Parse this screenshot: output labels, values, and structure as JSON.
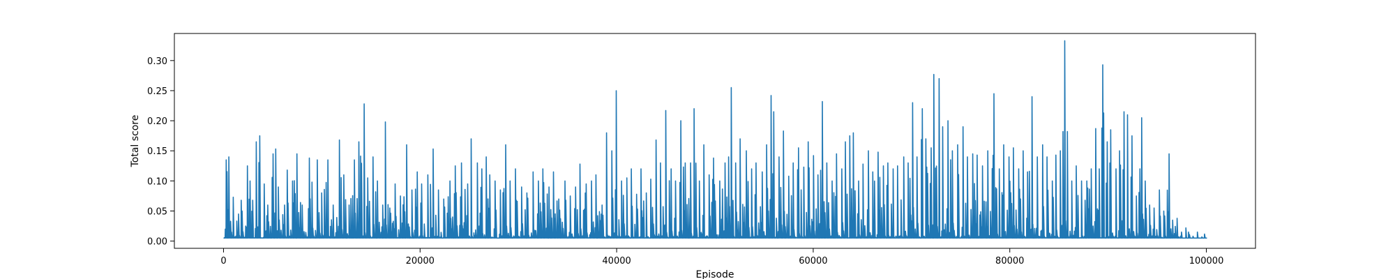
{
  "chart_data": {
    "type": "line",
    "title": "",
    "xlabel": "Episode",
    "ylabel": "Total score",
    "xlim": [
      -5000,
      105000
    ],
    "ylim": [
      -0.012,
      0.345
    ],
    "xticks": [
      0,
      20000,
      40000,
      60000,
      80000,
      100000
    ],
    "xtick_labels": [
      "0",
      "20000",
      "40000",
      "60000",
      "80000",
      "100000"
    ],
    "yticks": [
      0.0,
      0.05,
      0.1,
      0.15,
      0.2,
      0.25,
      0.3
    ],
    "ytick_labels": [
      "0.00",
      "0.05",
      "0.10",
      "0.15",
      "0.20",
      "0.25",
      "0.30"
    ],
    "grid": false,
    "color": "#1f77b4",
    "series": [
      {
        "baseline": 0.005,
        "x_range": [
          0,
          100000
        ],
        "peaks": [
          [
            0,
            0.005
          ],
          [
            150,
            0.02
          ],
          [
            300,
            0.135
          ],
          [
            550,
            0.14
          ],
          [
            800,
            0.015
          ],
          [
            1000,
            0.073
          ],
          [
            1500,
            0.045
          ],
          [
            1800,
            0.068
          ],
          [
            2400,
            0.125
          ],
          [
            2700,
            0.1
          ],
          [
            3000,
            0.068
          ],
          [
            3300,
            0.165
          ],
          [
            3700,
            0.175
          ],
          [
            4100,
            0.095
          ],
          [
            4500,
            0.06
          ],
          [
            5000,
            0.145
          ],
          [
            5300,
            0.153
          ],
          [
            5600,
            0.09
          ],
          [
            6200,
            0.06
          ],
          [
            6500,
            0.118
          ],
          [
            7000,
            0.1
          ],
          [
            7500,
            0.145
          ],
          [
            8000,
            0.06
          ],
          [
            8700,
            0.138
          ],
          [
            9000,
            0.098
          ],
          [
            9500,
            0.135
          ],
          [
            10000,
            0.08
          ],
          [
            10600,
            0.135
          ],
          [
            11200,
            0.06
          ],
          [
            11800,
            0.168
          ],
          [
            12200,
            0.11
          ],
          [
            12800,
            0.06
          ],
          [
            13300,
            0.135
          ],
          [
            13800,
            0.165
          ],
          [
            14300,
            0.228
          ],
          [
            14700,
            0.105
          ],
          [
            15200,
            0.14
          ],
          [
            15700,
            0.1
          ],
          [
            16200,
            0.06
          ],
          [
            16500,
            0.198
          ],
          [
            16900,
            0.055
          ],
          [
            17500,
            0.095
          ],
          [
            18000,
            0.075
          ],
          [
            18600,
            0.16
          ],
          [
            19200,
            0.085
          ],
          [
            19700,
            0.115
          ],
          [
            20200,
            0.095
          ],
          [
            20800,
            0.11
          ],
          [
            21300,
            0.153
          ],
          [
            21900,
            0.085
          ],
          [
            22400,
            0.07
          ],
          [
            23000,
            0.1
          ],
          [
            23600,
            0.125
          ],
          [
            24200,
            0.13
          ],
          [
            24800,
            0.095
          ],
          [
            25200,
            0.17
          ],
          [
            25800,
            0.13
          ],
          [
            26300,
            0.12
          ],
          [
            26700,
            0.14
          ],
          [
            27100,
            0.11
          ],
          [
            27600,
            0.1
          ],
          [
            28200,
            0.085
          ],
          [
            28700,
            0.16
          ],
          [
            29200,
            0.1
          ],
          [
            29700,
            0.12
          ],
          [
            30300,
            0.09
          ],
          [
            30900,
            0.08
          ],
          [
            31500,
            0.115
          ],
          [
            32000,
            0.1
          ],
          [
            32500,
            0.12
          ],
          [
            33100,
            0.09
          ],
          [
            33600,
            0.115
          ],
          [
            34100,
            0.07
          ],
          [
            34700,
            0.1
          ],
          [
            35300,
            0.075
          ],
          [
            35800,
            0.09
          ],
          [
            36300,
            0.128
          ],
          [
            36900,
            0.095
          ],
          [
            37400,
            0.1
          ],
          [
            37900,
            0.11
          ],
          [
            38500,
            0.06
          ],
          [
            39000,
            0.18
          ],
          [
            39500,
            0.15
          ],
          [
            40000,
            0.25
          ],
          [
            40500,
            0.1
          ],
          [
            41000,
            0.105
          ],
          [
            41500,
            0.12
          ],
          [
            42000,
            0.078
          ],
          [
            42500,
            0.12
          ],
          [
            43000,
            0.08
          ],
          [
            43500,
            0.103
          ],
          [
            44000,
            0.168
          ],
          [
            44500,
            0.13
          ],
          [
            45000,
            0.217
          ],
          [
            45500,
            0.12
          ],
          [
            46000,
            0.1
          ],
          [
            46500,
            0.2
          ],
          [
            47000,
            0.13
          ],
          [
            47500,
            0.13
          ],
          [
            47900,
            0.22
          ],
          [
            48400,
            0.1
          ],
          [
            48900,
            0.16
          ],
          [
            49400,
            0.11
          ],
          [
            49900,
            0.138
          ],
          [
            50500,
            0.1
          ],
          [
            51000,
            0.13
          ],
          [
            51400,
            0.14
          ],
          [
            51700,
            0.255
          ],
          [
            52100,
            0.13
          ],
          [
            52600,
            0.17
          ],
          [
            53200,
            0.15
          ],
          [
            53700,
            0.12
          ],
          [
            54200,
            0.13
          ],
          [
            54800,
            0.115
          ],
          [
            55300,
            0.16
          ],
          [
            55700,
            0.242
          ],
          [
            56000,
            0.215
          ],
          [
            56500,
            0.14
          ],
          [
            57000,
            0.183
          ],
          [
            57500,
            0.108
          ],
          [
            58000,
            0.13
          ],
          [
            58500,
            0.155
          ],
          [
            59000,
            0.123
          ],
          [
            59500,
            0.165
          ],
          [
            60000,
            0.142
          ],
          [
            60500,
            0.11
          ],
          [
            60900,
            0.232
          ],
          [
            61400,
            0.13
          ],
          [
            61900,
            0.1
          ],
          [
            62400,
            0.145
          ],
          [
            62900,
            0.12
          ],
          [
            63300,
            0.165
          ],
          [
            63700,
            0.175
          ],
          [
            64100,
            0.18
          ],
          [
            64600,
            0.1
          ],
          [
            65100,
            0.128
          ],
          [
            65600,
            0.15
          ],
          [
            66100,
            0.115
          ],
          [
            66600,
            0.148
          ],
          [
            67100,
            0.125
          ],
          [
            67600,
            0.13
          ],
          [
            68100,
            0.12
          ],
          [
            68600,
            0.125
          ],
          [
            69200,
            0.14
          ],
          [
            69700,
            0.13
          ],
          [
            70100,
            0.23
          ],
          [
            70600,
            0.14
          ],
          [
            71100,
            0.22
          ],
          [
            71500,
            0.17
          ],
          [
            72000,
            0.155
          ],
          [
            72300,
            0.277
          ],
          [
            72800,
            0.27
          ],
          [
            73200,
            0.19
          ],
          [
            73700,
            0.2
          ],
          [
            74200,
            0.15
          ],
          [
            74700,
            0.16
          ],
          [
            75200,
            0.19
          ],
          [
            75700,
            0.14
          ],
          [
            76200,
            0.145
          ],
          [
            76700,
            0.143
          ],
          [
            77200,
            0.125
          ],
          [
            77800,
            0.15
          ],
          [
            78400,
            0.245
          ],
          [
            78900,
            0.12
          ],
          [
            79400,
            0.16
          ],
          [
            79900,
            0.14
          ],
          [
            80400,
            0.155
          ],
          [
            80900,
            0.12
          ],
          [
            81400,
            0.15
          ],
          [
            81800,
            0.115
          ],
          [
            82300,
            0.24
          ],
          [
            82800,
            0.14
          ],
          [
            83300,
            0.16
          ],
          [
            83800,
            0.14
          ],
          [
            84300,
            0.1
          ],
          [
            84700,
            0.143
          ],
          [
            85100,
            0.15
          ],
          [
            85400,
            0.182
          ],
          [
            85600,
            0.333
          ],
          [
            85900,
            0.182
          ],
          [
            86300,
            0.1
          ],
          [
            86800,
            0.125
          ],
          [
            87300,
            0.1
          ],
          [
            87800,
            0.1
          ],
          [
            88300,
            0.12
          ],
          [
            88700,
            0.187
          ],
          [
            89100,
            0.12
          ],
          [
            89500,
            0.293
          ],
          [
            89900,
            0.165
          ],
          [
            90300,
            0.185
          ],
          [
            90800,
            0.12
          ],
          [
            91200,
            0.15
          ],
          [
            91600,
            0.215
          ],
          [
            92000,
            0.21
          ],
          [
            92400,
            0.175
          ],
          [
            92900,
            0.075
          ],
          [
            93400,
            0.205
          ],
          [
            93800,
            0.1
          ],
          [
            94200,
            0.06
          ],
          [
            94700,
            0.055
          ],
          [
            95200,
            0.085
          ],
          [
            95700,
            0.05
          ],
          [
            96200,
            0.145
          ],
          [
            96600,
            0.035
          ],
          [
            97000,
            0.038
          ],
          [
            97500,
            0.015
          ],
          [
            97900,
            0.022
          ],
          [
            98200,
            0.015
          ],
          [
            98600,
            0.008
          ],
          [
            99100,
            0.015
          ],
          [
            99500,
            0.007
          ],
          [
            100000,
            0.005
          ]
        ]
      }
    ]
  }
}
